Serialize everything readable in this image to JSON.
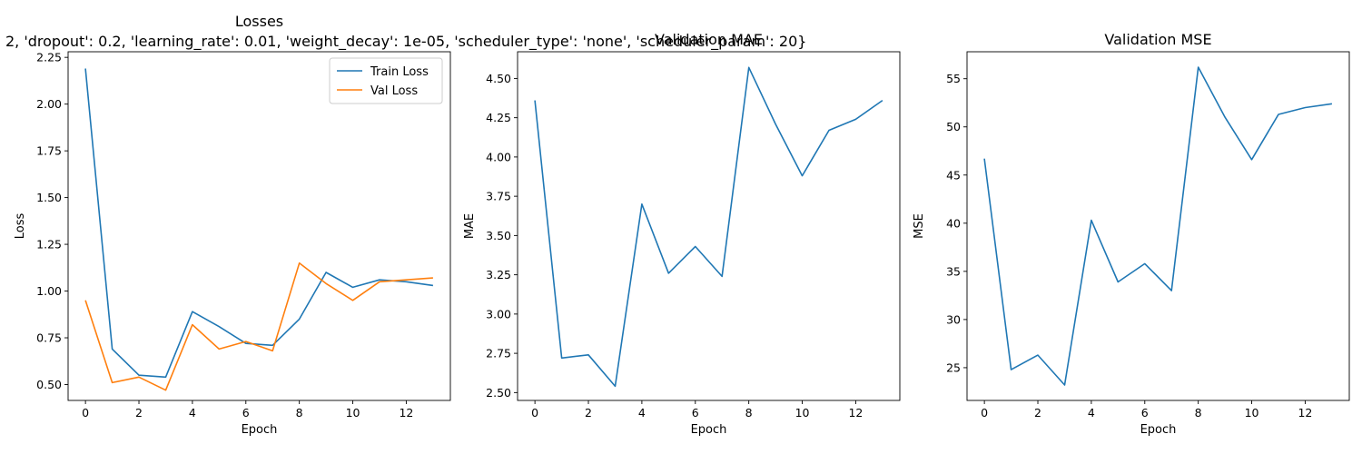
{
  "figure": {
    "suptitle": "2, 'dropout': 0.2, 'learning_rate': 0.01, 'weight_decay': 1e-05, 'scheduler_type': 'none', 'scheduler_param': 20}"
  },
  "chart_data": [
    {
      "type": "line",
      "title": "Losses",
      "xlabel": "Epoch",
      "ylabel": "Loss",
      "x": [
        0,
        1,
        2,
        3,
        4,
        5,
        6,
        7,
        8,
        9,
        10,
        11,
        12,
        13
      ],
      "xlim": [
        -0.65,
        13.65
      ],
      "ylim": [
        0.415,
        2.28
      ],
      "xticks": [
        0,
        2,
        4,
        6,
        8,
        10,
        12
      ],
      "xtick_labels": [
        "0",
        "2",
        "4",
        "6",
        "8",
        "10",
        "12"
      ],
      "yticks": [
        0.5,
        0.75,
        1.0,
        1.25,
        1.5,
        1.75,
        2.0,
        2.25
      ],
      "ytick_labels": [
        "0.50",
        "0.75",
        "1.00",
        "1.25",
        "1.50",
        "1.75",
        "2.00",
        "2.25"
      ],
      "legend": "top-right",
      "series": [
        {
          "name": "Train Loss",
          "color": "#1f77b4",
          "values": [
            2.19,
            0.69,
            0.55,
            0.54,
            0.89,
            0.81,
            0.72,
            0.71,
            0.85,
            1.1,
            1.02,
            1.06,
            1.05,
            1.03
          ]
        },
        {
          "name": "Val Loss",
          "color": "#ff7f0e",
          "values": [
            0.95,
            0.51,
            0.54,
            0.47,
            0.82,
            0.69,
            0.73,
            0.68,
            1.15,
            1.04,
            0.95,
            1.05,
            1.06,
            1.07
          ]
        }
      ]
    },
    {
      "type": "line",
      "title": "Validation MAE",
      "xlabel": "Epoch",
      "ylabel": "MAE",
      "x": [
        0,
        1,
        2,
        3,
        4,
        5,
        6,
        7,
        8,
        9,
        10,
        11,
        12,
        13
      ],
      "xlim": [
        -0.65,
        13.65
      ],
      "ylim": [
        2.45,
        4.67
      ],
      "xticks": [
        0,
        2,
        4,
        6,
        8,
        10,
        12
      ],
      "xtick_labels": [
        "0",
        "2",
        "4",
        "6",
        "8",
        "10",
        "12"
      ],
      "yticks": [
        2.5,
        2.75,
        3.0,
        3.25,
        3.5,
        3.75,
        4.0,
        4.25,
        4.5
      ],
      "ytick_labels": [
        "2.50",
        "2.75",
        "3.00",
        "3.25",
        "3.50",
        "3.75",
        "4.00",
        "4.25",
        "4.50"
      ],
      "series": [
        {
          "color": "#1f77b4",
          "values": [
            4.36,
            2.72,
            2.74,
            2.54,
            3.7,
            3.26,
            3.43,
            3.24,
            4.57,
            4.21,
            3.88,
            4.17,
            4.24,
            4.36
          ]
        }
      ]
    },
    {
      "type": "line",
      "title": "Validation MSE",
      "xlabel": "Epoch",
      "ylabel": "MSE",
      "x": [
        0,
        1,
        2,
        3,
        4,
        5,
        6,
        7,
        8,
        9,
        10,
        11,
        12,
        13
      ],
      "xlim": [
        -0.65,
        13.65
      ],
      "ylim": [
        21.6,
        57.8
      ],
      "xticks": [
        0,
        2,
        4,
        6,
        8,
        10,
        12
      ],
      "xtick_labels": [
        "0",
        "2",
        "4",
        "6",
        "8",
        "10",
        "12"
      ],
      "yticks": [
        25,
        30,
        35,
        40,
        45,
        50,
        55
      ],
      "ytick_labels": [
        "25",
        "30",
        "35",
        "40",
        "45",
        "50",
        "55"
      ],
      "series": [
        {
          "color": "#1f77b4",
          "values": [
            46.7,
            24.8,
            26.3,
            23.2,
            40.3,
            33.9,
            35.8,
            33.0,
            56.2,
            51.0,
            46.6,
            51.3,
            52.0,
            52.4
          ]
        }
      ]
    }
  ]
}
